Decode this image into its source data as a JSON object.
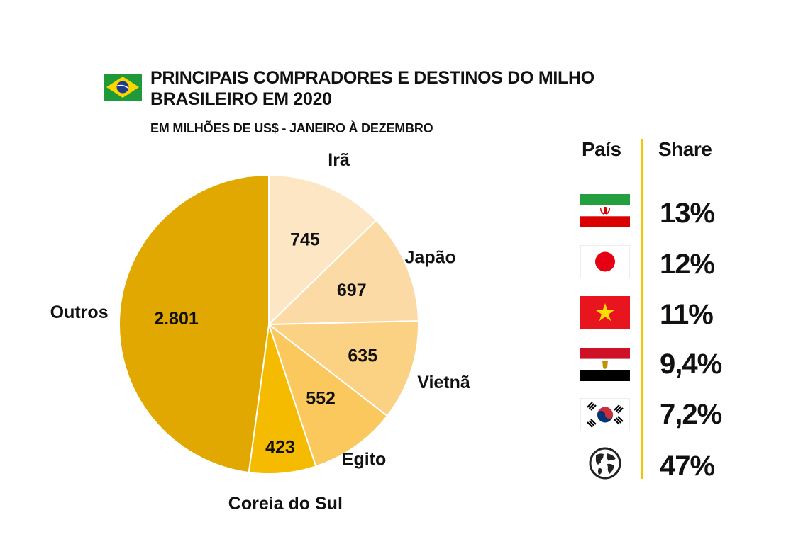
{
  "header": {
    "title_line1": "PRINCIPAIS COMPRADORES E DESTINOS DO MILHO",
    "title_line2": "BRASILEIRO EM 2020",
    "subtitle": "EM MILHÕES DE US$ - JANEIRO À DEZEMBRO"
  },
  "chart_data": {
    "type": "pie",
    "title": "PRINCIPAIS COMPRADORES E DESTINOS DO MILHO BRASILEIRO EM 2020",
    "subtitle": "EM MILHÕES DE US$ - JANEIRO À DEZEMBRO",
    "categories": [
      "Irã",
      "Japão",
      "Vietnã",
      "Egito",
      "Coreia do Sul",
      "Outros"
    ],
    "values": [
      745,
      697,
      635,
      552,
      423,
      2801
    ],
    "value_labels": [
      "745",
      "697",
      "635",
      "552",
      "423",
      "2.801"
    ],
    "colors": [
      "#fde6c3",
      "#fcdaa5",
      "#fbd184",
      "#fac85c",
      "#f5bb00",
      "#e0a800"
    ],
    "start": "12 o'clock, clockwise"
  },
  "table": {
    "header_country": "País",
    "header_share": "Share",
    "rows": [
      {
        "flag": "iran-flag-icon",
        "share": "13%"
      },
      {
        "flag": "japan-flag-icon",
        "share": "12%"
      },
      {
        "flag": "vietnam-flag-icon",
        "share": "11%"
      },
      {
        "flag": "egypt-flag-icon",
        "share": "9,4%"
      },
      {
        "flag": "south-korea-flag-icon",
        "share": "7,2%"
      },
      {
        "flag": "globe-icon",
        "share": "47%"
      }
    ]
  },
  "colors": {
    "divider": "#f5c400",
    "text": "#111111"
  }
}
